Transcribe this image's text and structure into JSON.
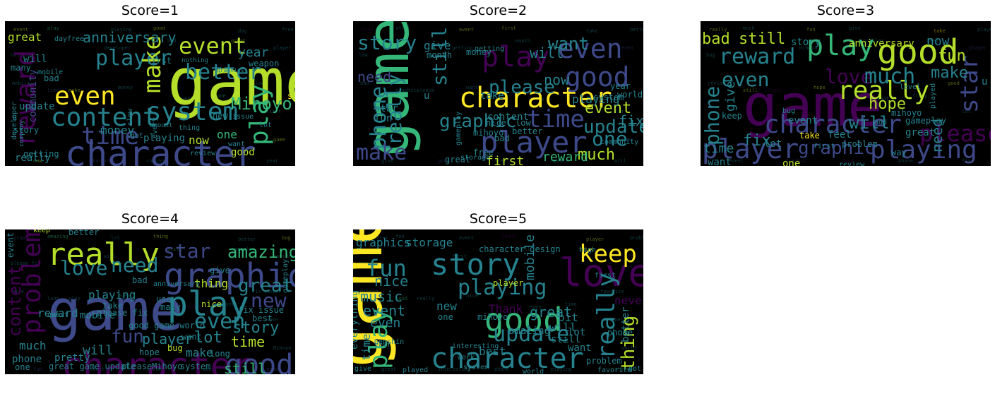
{
  "figure": {
    "background": "#ffffff",
    "cloud_background": "#000000"
  },
  "palette": {
    "yellow": "#fde725",
    "lime": "#b5de2b",
    "green": "#35b779",
    "teal": "#26828e",
    "blue": "#3e4989",
    "purple": "#440154",
    "mid": "#1f9e89"
  },
  "panels": [
    {
      "title": "Score=1",
      "words": [
        {
          "text": "game",
          "c": "lime"
        },
        {
          "text": "character",
          "c": "blue"
        },
        {
          "text": "player",
          "c": "teal"
        },
        {
          "text": "event",
          "c": "lime"
        },
        {
          "text": "system",
          "c": "teal"
        },
        {
          "text": "content",
          "c": "teal"
        },
        {
          "text": "even",
          "c": "yellow"
        },
        {
          "text": "time",
          "c": "blue"
        },
        {
          "text": "reward",
          "c": "purple"
        },
        {
          "text": "make",
          "c": "lime"
        },
        {
          "text": "play",
          "c": "green"
        },
        {
          "text": "Mihoyo",
          "c": "green"
        },
        {
          "text": "better",
          "c": "teal"
        },
        {
          "text": "anniversary",
          "c": "teal"
        },
        {
          "text": "great",
          "c": "lime"
        },
        {
          "text": "year",
          "c": "teal"
        },
        {
          "text": "money",
          "c": "teal"
        },
        {
          "text": "playing",
          "c": "teal"
        },
        {
          "text": "community",
          "c": "blue"
        },
        {
          "text": "really",
          "c": "teal"
        },
        {
          "text": "update",
          "c": "teal"
        },
        {
          "text": "weapon",
          "c": "teal"
        },
        {
          "text": "now",
          "c": "lime"
        },
        {
          "text": "one",
          "c": "green"
        },
        {
          "text": "good",
          "c": "lime"
        },
        {
          "text": "review",
          "c": "teal"
        },
        {
          "text": "story",
          "c": "teal"
        },
        {
          "text": "want",
          "c": "teal"
        },
        {
          "text": "will",
          "c": "teal"
        },
        {
          "text": "bad",
          "c": "teal"
        },
        {
          "text": "first",
          "c": "teal"
        },
        {
          "text": "day",
          "c": "teal"
        },
        {
          "text": "new",
          "c": "teal"
        },
        {
          "text": "issue",
          "c": "teal"
        },
        {
          "text": "many",
          "c": "teal"
        },
        {
          "text": "getting",
          "c": "teal"
        },
        {
          "text": "developer",
          "c": "teal"
        },
        {
          "text": "mobile",
          "c": "teal"
        },
        {
          "text": "free",
          "c": "teal"
        },
        {
          "text": "thing",
          "c": "teal"
        },
        {
          "text": "every",
          "c": "teal"
        },
        {
          "text": "amount",
          "c": "teal"
        },
        {
          "text": "got",
          "c": "teal"
        },
        {
          "text": "slow",
          "c": "teal"
        },
        {
          "text": "company",
          "c": "teal"
        },
        {
          "text": "nothing",
          "c": "teal"
        },
        {
          "text": "graphics",
          "c": "teal"
        },
        {
          "text": "s",
          "c": "yellow"
        },
        {
          "text": "lot",
          "c": "teal"
        },
        {
          "text": "u",
          "c": "teal"
        }
      ]
    },
    {
      "title": "Score=2",
      "words": [
        {
          "text": "game",
          "c": "green"
        },
        {
          "text": "character",
          "c": "yellow"
        },
        {
          "text": "player",
          "c": "blue"
        },
        {
          "text": "play",
          "c": "purple"
        },
        {
          "text": "even",
          "c": "blue"
        },
        {
          "text": "good",
          "c": "blue"
        },
        {
          "text": "time",
          "c": "blue"
        },
        {
          "text": "phone",
          "c": "teal"
        },
        {
          "text": "story",
          "c": "teal"
        },
        {
          "text": "really",
          "c": "teal"
        },
        {
          "text": "still",
          "c": "teal"
        },
        {
          "text": "please",
          "c": "teal"
        },
        {
          "text": "update",
          "c": "teal"
        },
        {
          "text": "graphic",
          "c": "teal"
        },
        {
          "text": "one",
          "c": "teal"
        },
        {
          "text": "much",
          "c": "lime"
        },
        {
          "text": "make",
          "c": "blue"
        },
        {
          "text": "event",
          "c": "lime"
        },
        {
          "text": "want",
          "c": "teal"
        },
        {
          "text": "will",
          "c": "teal"
        },
        {
          "text": "now",
          "c": "teal"
        },
        {
          "text": "playing",
          "c": "teal"
        },
        {
          "text": "fix",
          "c": "teal"
        },
        {
          "text": "reward",
          "c": "green"
        },
        {
          "text": "first",
          "c": "lime"
        },
        {
          "text": "need",
          "c": "blue"
        },
        {
          "text": "give",
          "c": "teal"
        },
        {
          "text": "money",
          "c": "teal"
        },
        {
          "text": "content",
          "c": "teal"
        },
        {
          "text": "mihoyo",
          "c": "teal"
        },
        {
          "text": "gameplay",
          "c": "teal"
        },
        {
          "text": "take",
          "c": "teal"
        },
        {
          "text": "fun",
          "c": "teal"
        },
        {
          "text": "month",
          "c": "teal"
        },
        {
          "text": "system",
          "c": "teal"
        },
        {
          "text": "community",
          "c": "teal"
        },
        {
          "text": "star",
          "c": "teal"
        },
        {
          "text": "great",
          "c": "teal"
        },
        {
          "text": "better",
          "c": "teal"
        },
        {
          "text": "bad",
          "c": "teal"
        },
        {
          "text": "getting",
          "c": "teal"
        },
        {
          "text": "year",
          "c": "teal"
        },
        {
          "text": "world",
          "c": "teal"
        },
        {
          "text": "storage",
          "c": "teal"
        },
        {
          "text": "nice",
          "c": "teal"
        },
        {
          "text": "low",
          "c": "teal"
        },
        {
          "text": "free",
          "c": "teal"
        },
        {
          "text": "u",
          "c": "teal"
        }
      ]
    },
    {
      "title": "Score=3",
      "words": [
        {
          "text": "game",
          "c": "purple"
        },
        {
          "text": "play",
          "c": "green"
        },
        {
          "text": "good",
          "c": "lime"
        },
        {
          "text": "really",
          "c": "lime"
        },
        {
          "text": "character",
          "c": "blue"
        },
        {
          "text": "player",
          "c": "blue"
        },
        {
          "text": "playing",
          "c": "blue"
        },
        {
          "text": "graphic",
          "c": "blue"
        },
        {
          "text": "reward",
          "c": "teal"
        },
        {
          "text": "love",
          "c": "purple"
        },
        {
          "text": "much",
          "c": "teal"
        },
        {
          "text": "even",
          "c": "teal"
        },
        {
          "text": "please",
          "c": "purple"
        },
        {
          "text": "star",
          "c": "blue"
        },
        {
          "text": "phone",
          "c": "teal"
        },
        {
          "text": "bad",
          "c": "lime"
        },
        {
          "text": "still",
          "c": "lime"
        },
        {
          "text": "fun",
          "c": "lime"
        },
        {
          "text": "make",
          "c": "teal"
        },
        {
          "text": "hope",
          "c": "lime"
        },
        {
          "text": "will",
          "c": "teal"
        },
        {
          "text": "fix",
          "c": "teal"
        },
        {
          "text": "time",
          "c": "teal"
        },
        {
          "text": "need",
          "c": "teal"
        },
        {
          "text": "give",
          "c": "teal"
        },
        {
          "text": "now",
          "c": "teal"
        },
        {
          "text": "story",
          "c": "teal"
        },
        {
          "text": "anniversary",
          "c": "lime"
        },
        {
          "text": "event",
          "c": "teal"
        },
        {
          "text": "one",
          "c": "lime"
        },
        {
          "text": "want",
          "c": "teal"
        },
        {
          "text": "take",
          "c": "yellow"
        },
        {
          "text": "feel",
          "c": "teal"
        },
        {
          "text": "lot",
          "c": "teal"
        },
        {
          "text": "keep",
          "c": "teal"
        },
        {
          "text": "problem",
          "c": "teal"
        },
        {
          "text": "great",
          "c": "teal"
        },
        {
          "text": "gameplay",
          "c": "teal"
        },
        {
          "text": "played",
          "c": "teal"
        },
        {
          "text": "way",
          "c": "teal"
        },
        {
          "text": "review",
          "c": "teal"
        },
        {
          "text": "add",
          "c": "teal"
        },
        {
          "text": "mihoyo",
          "c": "teal"
        },
        {
          "text": "first",
          "c": "teal"
        },
        {
          "text": "level",
          "c": "teal"
        },
        {
          "text": "bug",
          "c": "teal"
        },
        {
          "text": "u",
          "c": "teal"
        }
      ]
    },
    {
      "title": "Score=4",
      "words": [
        {
          "text": "game",
          "c": "blue"
        },
        {
          "text": "character",
          "c": "purple"
        },
        {
          "text": "really",
          "c": "lime"
        },
        {
          "text": "graphic",
          "c": "blue"
        },
        {
          "text": "play",
          "c": "teal"
        },
        {
          "text": "good",
          "c": "blue"
        },
        {
          "text": "problem",
          "c": "purple"
        },
        {
          "text": "love",
          "c": "teal"
        },
        {
          "text": "need",
          "c": "teal"
        },
        {
          "text": "star",
          "c": "blue"
        },
        {
          "text": "amazing",
          "c": "green"
        },
        {
          "text": "even",
          "c": "teal"
        },
        {
          "text": "fun",
          "c": "blue"
        },
        {
          "text": "new",
          "c": "blue"
        },
        {
          "text": "great",
          "c": "teal"
        },
        {
          "text": "story",
          "c": "teal"
        },
        {
          "text": "time",
          "c": "lime"
        },
        {
          "text": "lot",
          "c": "teal"
        },
        {
          "text": "player",
          "c": "teal"
        },
        {
          "text": "still",
          "c": "green"
        },
        {
          "text": "content",
          "c": "purple"
        },
        {
          "text": "reward",
          "c": "teal"
        },
        {
          "text": "mobile",
          "c": "teal"
        },
        {
          "text": "playing",
          "c": "teal"
        },
        {
          "text": "thing",
          "c": "lime"
        },
        {
          "text": "make",
          "c": "teal"
        },
        {
          "text": "will",
          "c": "teal"
        },
        {
          "text": "much",
          "c": "teal"
        },
        {
          "text": "phone",
          "c": "teal"
        },
        {
          "text": "one",
          "c": "teal"
        },
        {
          "text": "keep",
          "c": "lime"
        },
        {
          "text": "better",
          "c": "teal"
        },
        {
          "text": "give",
          "c": "teal"
        },
        {
          "text": "fix issue",
          "c": "teal"
        },
        {
          "text": "nice",
          "c": "lime"
        },
        {
          "text": "best",
          "c": "teal"
        },
        {
          "text": "pretty",
          "c": "teal"
        },
        {
          "text": "hope",
          "c": "teal"
        },
        {
          "text": "bug",
          "c": "lime"
        },
        {
          "text": "system",
          "c": "teal"
        },
        {
          "text": "Mihoyo",
          "c": "teal"
        },
        {
          "text": "great game update",
          "c": "teal"
        },
        {
          "text": "please",
          "c": "teal"
        },
        {
          "text": "take",
          "c": "teal"
        },
        {
          "text": "good game world",
          "c": "teal"
        },
        {
          "text": "please fix",
          "c": "teal"
        },
        {
          "text": "event",
          "c": "teal"
        },
        {
          "text": "long",
          "c": "teal"
        },
        {
          "text": "want",
          "c": "teal"
        },
        {
          "text": "bad",
          "c": "teal"
        },
        {
          "text": "use",
          "c": "teal"
        },
        {
          "text": "many",
          "c": "teal"
        },
        {
          "text": "anniversary",
          "c": "teal"
        },
        {
          "text": "quest",
          "c": "teal"
        },
        {
          "text": "gameplay",
          "c": "teal"
        }
      ]
    },
    {
      "title": "Score=5",
      "words": [
        {
          "text": "game",
          "c": "yellow"
        },
        {
          "text": "love",
          "c": "purple"
        },
        {
          "text": "story",
          "c": "teal"
        },
        {
          "text": "character",
          "c": "teal"
        },
        {
          "text": "good",
          "c": "green"
        },
        {
          "text": "update",
          "c": "teal"
        },
        {
          "text": "playing",
          "c": "teal"
        },
        {
          "text": "play",
          "c": "green"
        },
        {
          "text": "really",
          "c": "teal"
        },
        {
          "text": "keep",
          "c": "yellow"
        },
        {
          "text": "fun",
          "c": "teal"
        },
        {
          "text": "thing",
          "c": "lime"
        },
        {
          "text": "graphics",
          "c": "teal"
        },
        {
          "text": "storage",
          "c": "teal"
        },
        {
          "text": "amazing",
          "c": "teal"
        },
        {
          "text": "nice",
          "c": "teal"
        },
        {
          "text": "music",
          "c": "teal"
        },
        {
          "text": "event",
          "c": "teal"
        },
        {
          "text": "even",
          "c": "teal"
        },
        {
          "text": "new",
          "c": "teal"
        },
        {
          "text": "great",
          "c": "teal"
        },
        {
          "text": "best",
          "c": "teal"
        },
        {
          "text": "time",
          "c": "teal"
        },
        {
          "text": "bit",
          "c": "teal"
        },
        {
          "text": "Thank",
          "c": "purple"
        },
        {
          "text": "will",
          "c": "teal"
        },
        {
          "text": "lot",
          "c": "teal"
        },
        {
          "text": "still",
          "c": "teal"
        },
        {
          "text": "want",
          "c": "teal"
        },
        {
          "text": "better",
          "c": "teal"
        },
        {
          "text": "mobile",
          "c": "teal"
        },
        {
          "text": "player",
          "c": "lime"
        },
        {
          "text": "character design",
          "c": "teal"
        },
        {
          "text": "high",
          "c": "teal"
        },
        {
          "text": "first",
          "c": "teal"
        },
        {
          "text": "everything",
          "c": "teal"
        },
        {
          "text": "mihoyo",
          "c": "teal"
        },
        {
          "text": "never",
          "c": "purple"
        },
        {
          "text": "problem",
          "c": "teal"
        },
        {
          "text": "give",
          "c": "teal"
        },
        {
          "text": "played",
          "c": "teal"
        },
        {
          "text": "favorite",
          "c": "teal"
        },
        {
          "text": "got",
          "c": "teal"
        },
        {
          "text": "phone",
          "c": "teal"
        },
        {
          "text": "work",
          "c": "teal"
        },
        {
          "text": "one",
          "c": "teal"
        },
        {
          "text": "year",
          "c": "teal"
        },
        {
          "text": "system",
          "c": "teal"
        },
        {
          "text": "world",
          "c": "teal"
        },
        {
          "text": "Genshin",
          "c": "teal"
        },
        {
          "text": "interesting",
          "c": "teal"
        }
      ]
    }
  ],
  "chart_data": [
    {
      "type": "wordcloud",
      "title": "Score=1",
      "top_terms": [
        "game",
        "character",
        "player",
        "event",
        "system",
        "content",
        "even",
        "time",
        "reward",
        "make",
        "play",
        "Mihoyo"
      ]
    },
    {
      "type": "wordcloud",
      "title": "Score=2",
      "top_terms": [
        "game",
        "character",
        "player",
        "play",
        "even",
        "good",
        "time",
        "phone",
        "story",
        "really",
        "still",
        "please"
      ]
    },
    {
      "type": "wordcloud",
      "title": "Score=3",
      "top_terms": [
        "game",
        "play",
        "good",
        "really",
        "character",
        "player",
        "playing",
        "graphic",
        "reward",
        "love",
        "much",
        "even"
      ]
    },
    {
      "type": "wordcloud",
      "title": "Score=4",
      "top_terms": [
        "game",
        "character",
        "really",
        "graphic",
        "play",
        "good",
        "problem",
        "love",
        "need",
        "star",
        "amazing",
        "even"
      ]
    },
    {
      "type": "wordcloud",
      "title": "Score=5",
      "top_terms": [
        "game",
        "love",
        "story",
        "character",
        "good",
        "update",
        "playing",
        "play",
        "really",
        "keep",
        "fun",
        "thing"
      ]
    }
  ]
}
